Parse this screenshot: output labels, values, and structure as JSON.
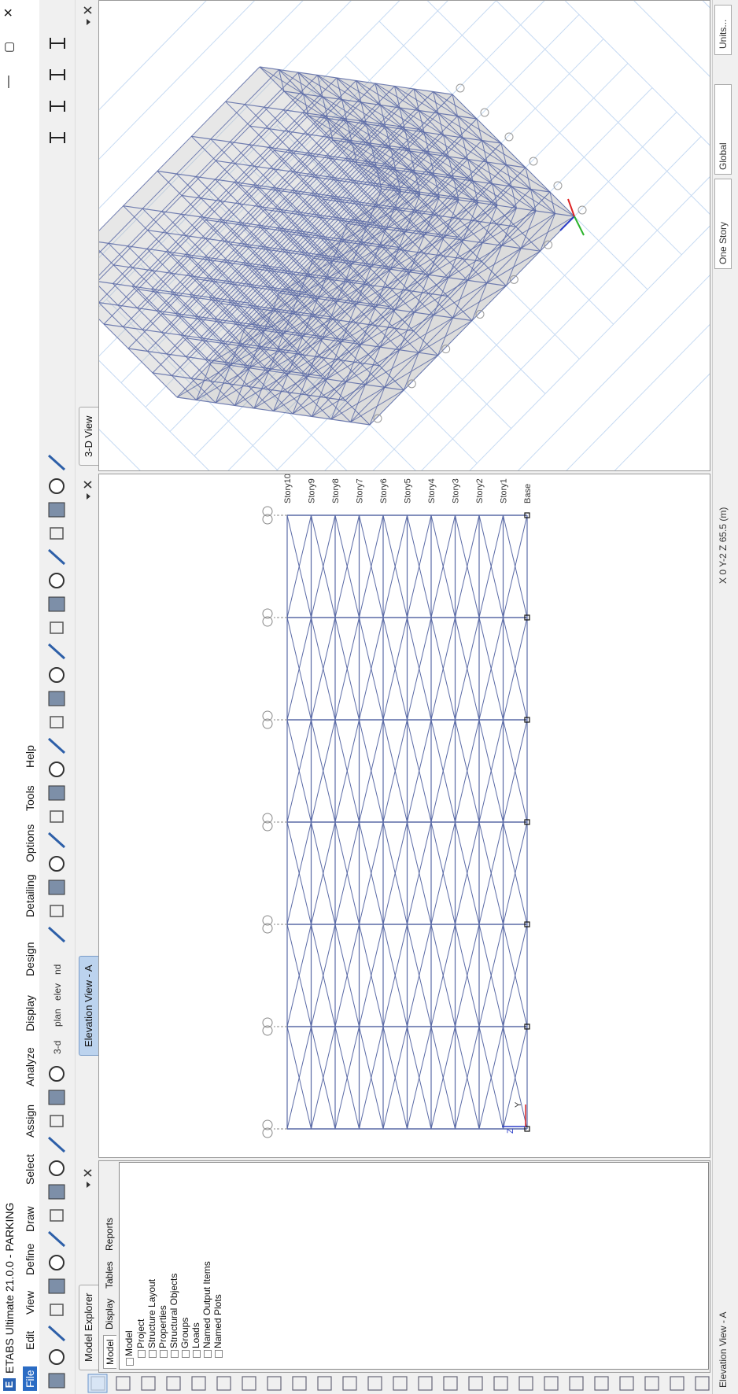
{
  "title_bar": {
    "icon": "E",
    "title": "ETABS Ultimate 21.0.0 - PARKING",
    "controls": [
      "—",
      "▢",
      "×"
    ]
  },
  "menu": [
    "File",
    "Edit",
    "View",
    "Define",
    "Draw",
    "Select",
    "Assign",
    "Analyze",
    "Display",
    "Design",
    "Detailing",
    "Options",
    "Tools",
    "Help"
  ],
  "toolbar": {
    "labels": [
      "3-d",
      "plan",
      "elev",
      "nd"
    ]
  },
  "model_explorer": {
    "tab": "Model Explorer",
    "subtabs": [
      "Model",
      "Display",
      "Tables",
      "Reports"
    ],
    "tree": {
      "root": "Model",
      "items": [
        "Project",
        "Structure Layout",
        "Properties",
        "Structural Objects",
        "Groups",
        "Loads",
        "Named Output Items",
        "Named Plots"
      ]
    }
  },
  "elevation_view": {
    "tab": "Elevation View - A",
    "stories": [
      "Base",
      "Story1",
      "Story2",
      "Story3",
      "Story4",
      "Story5",
      "Story6",
      "Story7",
      "Story8",
      "Story9",
      "Story10"
    ],
    "axis_labels": [
      "Z",
      "Y"
    ]
  },
  "view_3d": {
    "tab": "3-D View"
  },
  "status_bar": {
    "view": "Elevation View - A",
    "coordinates": "X 0 Y-2 Z 65.5 (m)",
    "story_option": "One Story",
    "coord_system": "Global",
    "units": "Units..."
  }
}
